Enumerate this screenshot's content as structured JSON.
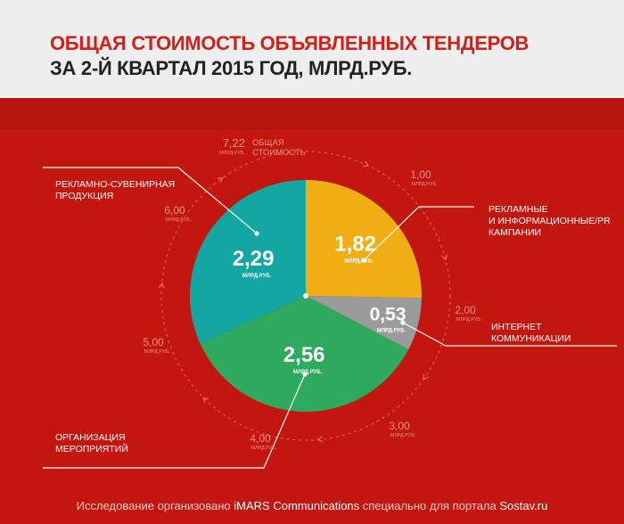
{
  "header": {
    "title_line1": "ОБЩАЯ СТОИМОСТЬ ОБЪЯВЛЕННЫХ ТЕНДЕРОВ",
    "title_line2": "ЗА 2-Й КВАРТАЛ 2015 ГОД, МЛРД.РУБ."
  },
  "footer": {
    "prefix": "Исследование организовано ",
    "brand": "iMARS Communications",
    "middle": " специально для портала ",
    "site": "Sostav.ru"
  },
  "colors": {
    "background": "#c2160f",
    "header": "#eeeeee",
    "title_red": "#d0201a"
  },
  "chart_data": {
    "type": "pie",
    "unit_label": "МЛРД.РУБ.",
    "total": {
      "value": "7,22",
      "unit": "МЛРД.РУБ.",
      "label": [
        "ОБЩАЯ",
        "СТОИМОСТЬ"
      ]
    },
    "scale_ticks": [
      {
        "value": 1,
        "label": "1,00",
        "unit": "МЛРД.РУБ."
      },
      {
        "value": 2,
        "label": "2,00",
        "unit": "МЛРД.РУБ."
      },
      {
        "value": 3,
        "label": "3,00",
        "unit": "МЛРД.РУБ."
      },
      {
        "value": 4,
        "label": "4,00",
        "unit": "МЛРД.РУБ."
      },
      {
        "value": 5,
        "label": "5,00",
        "unit": "МЛРД.РУБ."
      },
      {
        "value": 6,
        "label": "6,00",
        "unit": "МЛРД.РУБ."
      }
    ],
    "slices": [
      {
        "value": 1.82,
        "label": "1,82",
        "color": "#f0ad14",
        "category": [
          "РЕКЛАМНЫЕ",
          "И ИНФОРМАЦИОННЫЕ/PR",
          "КАМПАНИИ"
        ]
      },
      {
        "value": 0.53,
        "label": "0,53",
        "color": "#9b9b9b",
        "category": [
          "ИНТЕРНЕТ",
          "КОММУНИКАЦИИ"
        ]
      },
      {
        "value": 2.56,
        "label": "2,56",
        "color": "#2daa5e",
        "category": [
          "ОРГАНИЗАЦИЯ",
          "МЕРОПРИЯТИЙ"
        ]
      },
      {
        "value": 2.29,
        "label": "2,29",
        "color": "#13a6a3",
        "category": [
          "РЕКЛАМНО-СУВЕНИРНАЯ",
          "ПРОДУКЦИЯ"
        ]
      }
    ]
  }
}
